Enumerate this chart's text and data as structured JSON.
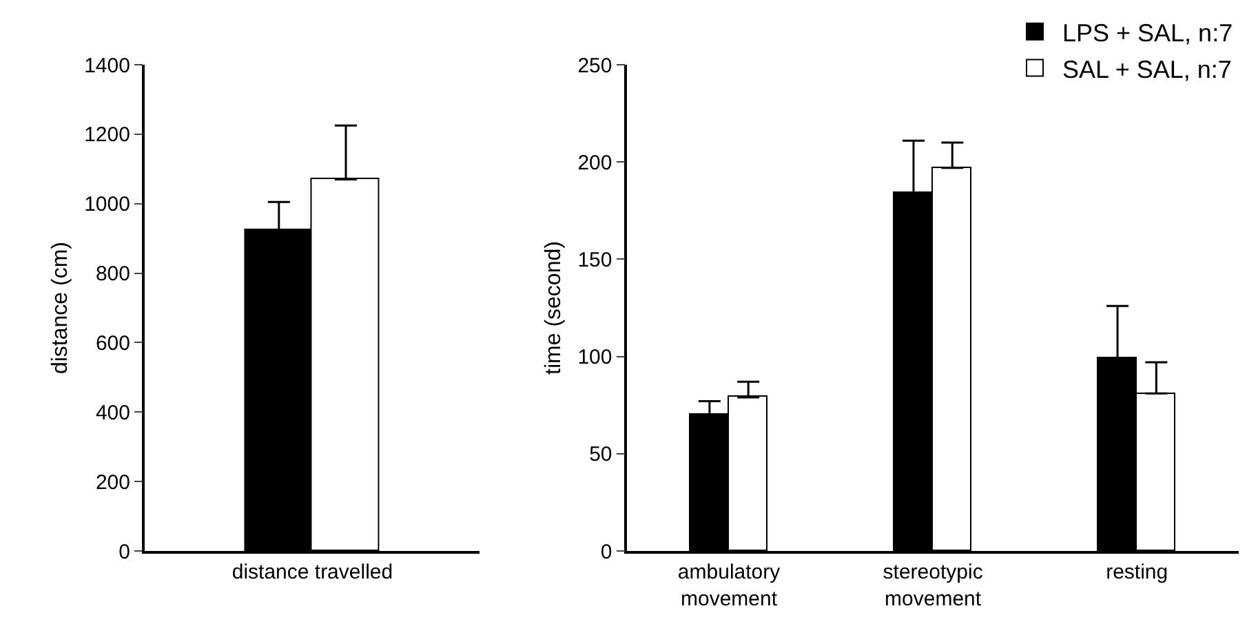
{
  "chart_data": [
    {
      "type": "bar",
      "categories": [
        "distance travelled"
      ],
      "ylabel": "distance (cm)",
      "ylim": [
        0,
        1400
      ],
      "yticks": [
        0,
        200,
        400,
        600,
        800,
        1000,
        1200,
        1400
      ],
      "legend": false,
      "series": [
        {
          "color": "#000000",
          "values": [
            925
          ],
          "errors": [
            [
              925,
              1005
            ]
          ]
        },
        {
          "color": "#ffffff",
          "values": [
            1070
          ],
          "errors": [
            [
              1070,
              1225
            ]
          ]
        }
      ]
    },
    {
      "type": "bar",
      "categories": [
        "ambulatory\nmovement",
        "stereotypic\nmovement",
        "resting"
      ],
      "ylabel": "time (second)",
      "ylim": [
        0,
        250
      ],
      "yticks": [
        0,
        50,
        100,
        150,
        200,
        250
      ],
      "legend": "top right",
      "series": [
        {
          "name": "LPS + SAL, n:7",
          "color": "#000000",
          "values": [
            70,
            184,
            99
          ],
          "errors": [
            [
              70,
              77
            ],
            [
              184,
              211
            ],
            [
              99,
              126
            ]
          ]
        },
        {
          "name": "SAL + SAL, n:7",
          "color": "#ffffff",
          "values": [
            79,
            197,
            81
          ],
          "errors": [
            [
              79,
              87
            ],
            [
              197,
              210
            ],
            [
              81,
              97
            ]
          ]
        }
      ]
    }
  ]
}
